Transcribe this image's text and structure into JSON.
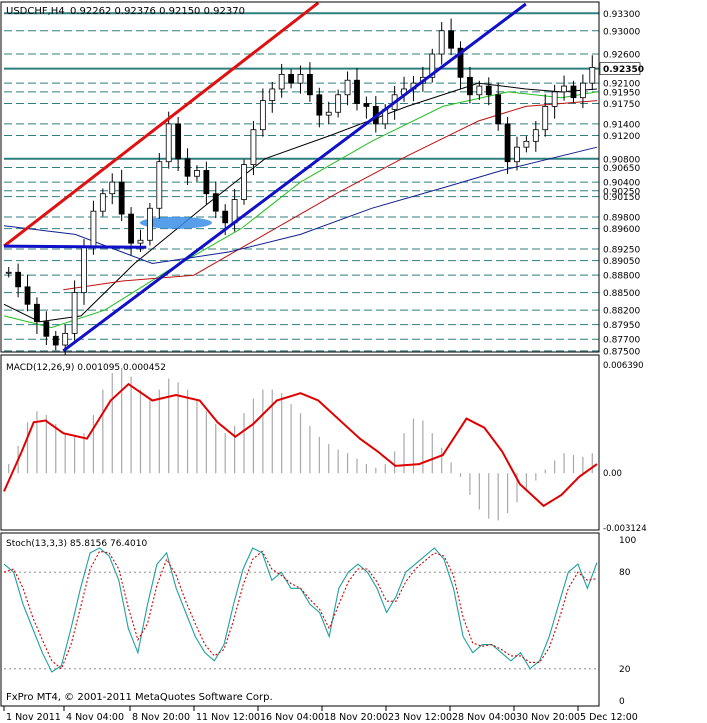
{
  "header": {
    "symbol": "USDCHF,H4",
    "ohlc": "0.92262 0.92376 0.92150 0.92370"
  },
  "footer": {
    "copyright": "FxPro MT4, © 2001-2011 MetaQuotes Software Corp."
  },
  "colors": {
    "axis": "#000000",
    "grid": "#2f7f7f",
    "candle": "#000000",
    "trendline_red": "#e01010",
    "trendline_blue": "#1010c8",
    "ma_black": "#000000",
    "ma_green": "#22c022",
    "ma_red": "#c01010",
    "ma_navy": "#102090",
    "macd_hist": "#a8a8a8",
    "macd_signal": "#e00000",
    "stoch_main": "#20a0a0",
    "stoch_signal": "#d00000",
    "ellipse": "#3a8ee6"
  },
  "chart_data": [
    {
      "type": "candlestick",
      "title": "USDCHF,H4",
      "y_ticks": [
        "0.93300",
        "0.93000",
        "0.92600",
        "0.92350",
        "0.92100",
        "0.91950",
        "0.91750",
        "0.91400",
        "0.91200",
        "0.90800",
        "0.90650",
        "0.90400",
        "0.90250",
        "0.90150",
        "0.89800",
        "0.89600",
        "0.89250",
        "0.89050",
        "0.88800",
        "0.88500",
        "0.88200",
        "0.87950",
        "0.87700",
        "0.87500"
      ],
      "current_price_label": "0.92350",
      "ylim": [
        0.8748,
        0.9346
      ],
      "x_ticks": [
        "1 Nov 2011",
        "4 Nov 04:00",
        "8 Nov 20:00",
        "11 Nov 12:00",
        "16 Nov 04:00",
        "18 Nov 20:00",
        "23 Nov 12:00",
        "28 Nov 04:00",
        "30 Nov 20:00",
        "5 Dec 12:00"
      ],
      "close_path": [
        0.8885,
        0.886,
        0.883,
        0.88,
        0.8775,
        0.876,
        0.878,
        0.885,
        0.893,
        0.899,
        0.902,
        0.904,
        0.8985,
        0.8935,
        0.894,
        0.8995,
        0.9075,
        0.914,
        0.908,
        0.905,
        0.906,
        0.902,
        0.899,
        0.897,
        0.901,
        0.907,
        0.913,
        0.918,
        0.92,
        0.9225,
        0.921,
        0.9225,
        0.919,
        0.9155,
        0.916,
        0.919,
        0.9215,
        0.9175,
        0.917,
        0.914,
        0.9165,
        0.919,
        0.92,
        0.921,
        0.922,
        0.926,
        0.93,
        0.927,
        0.922,
        0.919,
        0.9205,
        0.919,
        0.914,
        0.9075,
        0.91,
        0.911,
        0.913,
        0.917,
        0.9195,
        0.9205,
        0.9185,
        0.921,
        0.9237
      ],
      "lines": [
        {
          "name": "",
          "kind": "trendline",
          "color": "#e01010",
          "points": [
            [
              0.0,
              0.893
            ],
            [
              0.53,
              0.9348
            ]
          ]
        },
        {
          "name": "",
          "kind": "trendline",
          "color": "#1010c8",
          "points": [
            [
              0.1,
              0.875
            ],
            [
              0.88,
              0.9346
            ]
          ]
        },
        {
          "name": "",
          "kind": "segment",
          "color": "#1010c8",
          "points": [
            [
              0.0,
              0.893
            ],
            [
              0.24,
              0.8928
            ]
          ]
        },
        {
          "name": "",
          "kind": "moving-average",
          "color": "#000000",
          "points": [
            [
              0.0,
              0.883
            ],
            [
              0.06,
              0.88
            ],
            [
              0.13,
              0.881
            ],
            [
              0.22,
              0.89
            ],
            [
              0.34,
              0.9
            ],
            [
              0.44,
              0.908
            ],
            [
              0.55,
              0.912
            ],
            [
              0.68,
              0.917
            ],
            [
              0.8,
              0.921
            ],
            [
              0.88,
              0.92
            ],
            [
              0.94,
              0.9195
            ],
            [
              1.0,
              0.92
            ]
          ]
        },
        {
          "name": "",
          "kind": "moving-average",
          "color": "#22c022",
          "points": [
            [
              0.0,
              0.881
            ],
            [
              0.08,
              0.879
            ],
            [
              0.17,
              0.882
            ],
            [
              0.28,
              0.889
            ],
            [
              0.4,
              0.896
            ],
            [
              0.5,
              0.904
            ],
            [
              0.62,
              0.911
            ],
            [
              0.74,
              0.917
            ],
            [
              0.85,
              0.9195
            ],
            [
              0.94,
              0.9185
            ],
            [
              1.0,
              0.9195
            ]
          ]
        },
        {
          "name": "",
          "kind": "moving-average",
          "color": "#c01010",
          "points": [
            [
              0.1,
              0.8855
            ],
            [
              0.2,
              0.887
            ],
            [
              0.32,
              0.888
            ],
            [
              0.44,
              0.895
            ],
            [
              0.56,
              0.902
            ],
            [
              0.68,
              0.9085
            ],
            [
              0.8,
              0.9145
            ],
            [
              0.88,
              0.917
            ],
            [
              1.0,
              0.918
            ]
          ]
        },
        {
          "name": "",
          "kind": "moving-average",
          "color": "#102090",
          "points": [
            [
              0.0,
              0.8965
            ],
            [
              0.12,
              0.895
            ],
            [
              0.25,
              0.89
            ],
            [
              0.38,
              0.892
            ],
            [
              0.5,
              0.895
            ],
            [
              0.62,
              0.8995
            ],
            [
              0.74,
              0.903
            ],
            [
              0.84,
              0.906
            ],
            [
              1.0,
              0.91
            ]
          ]
        }
      ],
      "annotations": [
        {
          "kind": "ellipse",
          "color": "#3a8ee6",
          "x": 0.29,
          "y": 0.897
        }
      ]
    },
    {
      "type": "bar",
      "title": "MACD(12,26,9) 0.001095 0.000452",
      "y_ticks": [
        "0.006390",
        "0.00",
        "-0.003124"
      ],
      "ylim": [
        -0.003124,
        0.00639
      ],
      "histogram": [
        0.0005,
        0.0015,
        0.0028,
        0.0034,
        0.0032,
        0.0027,
        0.0022,
        0.002,
        0.0022,
        0.0032,
        0.0046,
        0.0055,
        0.0058,
        0.0053,
        0.0046,
        0.004,
        0.0046,
        0.0052,
        0.005,
        0.0046,
        0.004,
        0.0034,
        0.0027,
        0.0022,
        0.0026,
        0.0033,
        0.0041,
        0.0046,
        0.0046,
        0.0044,
        0.0038,
        0.0033,
        0.0026,
        0.002,
        0.0016,
        0.0013,
        0.0011,
        0.0008,
        0.0005,
        0.0003,
        0.0005,
        0.0012,
        0.0022,
        0.003,
        0.0029,
        0.0022,
        0.0014,
        0.0006,
        -0.0002,
        -0.0012,
        -0.002,
        -0.0025,
        -0.0026,
        -0.0022,
        -0.0016,
        -0.001,
        -0.0004,
        0.0002,
        0.0007,
        0.0011,
        0.001,
        0.0009,
        0.0011
      ],
      "signal_line": [
        [
          0.0,
          -0.001
        ],
        [
          0.03,
          0.0012
        ],
        [
          0.05,
          0.0028
        ],
        [
          0.07,
          0.0029
        ],
        [
          0.1,
          0.0022
        ],
        [
          0.14,
          0.0019
        ],
        [
          0.18,
          0.004
        ],
        [
          0.21,
          0.0049
        ],
        [
          0.25,
          0.004
        ],
        [
          0.29,
          0.0043
        ],
        [
          0.33,
          0.004
        ],
        [
          0.36,
          0.0028
        ],
        [
          0.39,
          0.002
        ],
        [
          0.42,
          0.0027
        ],
        [
          0.46,
          0.004
        ],
        [
          0.5,
          0.0044
        ],
        [
          0.53,
          0.004
        ],
        [
          0.57,
          0.0028
        ],
        [
          0.6,
          0.0019
        ],
        [
          0.63,
          0.0012
        ],
        [
          0.66,
          0.0004
        ],
        [
          0.7,
          0.0005
        ],
        [
          0.74,
          0.001
        ],
        [
          0.78,
          0.003
        ],
        [
          0.81,
          0.0025
        ],
        [
          0.84,
          0.0012
        ],
        [
          0.87,
          -0.0006
        ],
        [
          0.91,
          -0.0018
        ],
        [
          0.94,
          -0.0012
        ],
        [
          0.97,
          -0.0002
        ],
        [
          1.0,
          0.0005
        ]
      ]
    },
    {
      "type": "line",
      "title": "Stoch(13,3,3) 85.8156 76.4010",
      "y_ticks": [
        "100",
        "80",
        "20",
        "0"
      ],
      "ylim": [
        0,
        100
      ],
      "series": [
        {
          "name": "",
          "color": "#20a0a0",
          "values": [
            85,
            80,
            60,
            45,
            30,
            18,
            22,
            45,
            70,
            92,
            95,
            90,
            75,
            45,
            30,
            60,
            85,
            92,
            70,
            55,
            40,
            30,
            25,
            35,
            60,
            82,
            95,
            92,
            75,
            80,
            70,
            70,
            60,
            55,
            40,
            70,
            80,
            85,
            80,
            70,
            55,
            65,
            80,
            85,
            90,
            95,
            88,
            70,
            40,
            30,
            35,
            35,
            30,
            25,
            30,
            20,
            25,
            40,
            60,
            80,
            85,
            70,
            86
          ]
        },
        {
          "name": "",
          "color": "#d00000",
          "values": [
            80,
            82,
            70,
            52,
            38,
            25,
            20,
            35,
            58,
            82,
            93,
            92,
            82,
            58,
            38,
            48,
            72,
            88,
            78,
            62,
            48,
            35,
            28,
            32,
            50,
            72,
            88,
            93,
            82,
            78,
            73,
            70,
            63,
            57,
            45,
            60,
            74,
            82,
            82,
            74,
            62,
            62,
            74,
            82,
            87,
            92,
            90,
            78,
            52,
            36,
            34,
            35,
            32,
            28,
            28,
            24,
            24,
            33,
            50,
            70,
            80,
            75,
            76
          ]
        }
      ]
    }
  ],
  "macd_zero_label": "0.00"
}
